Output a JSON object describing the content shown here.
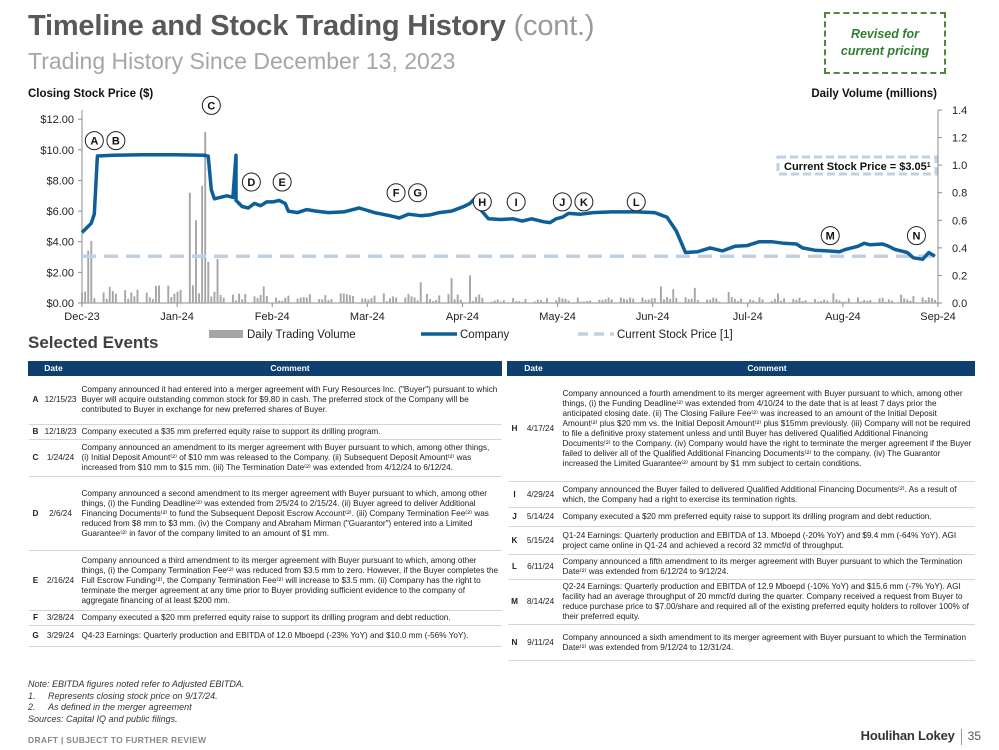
{
  "header": {
    "title": "Timeline and Stock Trading History",
    "title_suffix": "(cont.)",
    "subtitle": "Trading History Since December 13, 2023",
    "revised_note": "Revised for\ncurrent pricing"
  },
  "chart_data": {
    "type": "line+bar",
    "left_axis_label": "Closing Stock Price ($)",
    "right_axis_label": "Daily Volume (millions)",
    "y_left_ticks": [
      "$0.00",
      "$2.00",
      "$4.00",
      "$6.00",
      "$8.00",
      "$10.00",
      "$12.00"
    ],
    "y_left_range": [
      0,
      12.6
    ],
    "y_right_ticks": [
      "0.0",
      "0.2",
      "0.4",
      "0.6",
      "0.8",
      "1.0",
      "1.2",
      "1.4"
    ],
    "y_right_range": [
      0,
      1.4
    ],
    "x_tick_labels": [
      "Dec-23",
      "Jan-24",
      "Feb-24",
      "Mar-24",
      "Apr-24",
      "May-24",
      "Jun-24",
      "Jul-24",
      "Aug-24",
      "Sep-24"
    ],
    "x_day_range": [
      0,
      278
    ],
    "current_price": 3.05,
    "current_price_label": "Current Stock Price = $3.05",
    "current_price_footnote": "1",
    "price_series": [
      [
        0,
        4.6
      ],
      [
        3,
        5.2
      ],
      [
        4,
        5.8
      ],
      [
        5,
        9.6
      ],
      [
        10,
        9.65
      ],
      [
        20,
        9.68
      ],
      [
        30,
        9.68
      ],
      [
        40,
        9.65
      ],
      [
        50,
        9.65
      ],
      [
        40,
        9.62
      ],
      [
        41,
        9.6
      ],
      [
        42,
        7.4
      ],
      [
        43,
        6.8
      ],
      [
        45,
        6.9
      ],
      [
        47,
        7.0
      ],
      [
        49,
        6.9
      ],
      [
        50,
        6.7
      ],
      [
        52,
        6.3
      ],
      [
        54,
        6.2
      ],
      [
        56,
        6.5
      ],
      [
        58,
        6.35
      ],
      [
        60,
        6.6
      ],
      [
        62,
        6.6
      ],
      [
        64,
        6.7
      ],
      [
        66,
        6.5
      ],
      [
        67,
        6.0
      ],
      [
        70,
        5.9
      ],
      [
        73,
        6.1
      ],
      [
        76,
        6.0
      ],
      [
        80,
        5.9
      ],
      [
        85,
        5.95
      ],
      [
        90,
        6.2
      ],
      [
        95,
        5.9
      ],
      [
        100,
        5.7
      ],
      [
        103,
        5.55
      ],
      [
        106,
        5.8
      ],
      [
        110,
        5.7
      ],
      [
        113,
        5.75
      ],
      [
        116,
        5.9
      ],
      [
        120,
        6.0
      ],
      [
        122,
        6.15
      ],
      [
        124,
        6.3
      ],
      [
        126,
        6.5
      ],
      [
        128,
        6.9
      ],
      [
        129,
        6.2
      ],
      [
        132,
        5.5
      ],
      [
        136,
        5.45
      ],
      [
        140,
        5.5
      ],
      [
        143,
        5.35
      ],
      [
        146,
        5.5
      ],
      [
        150,
        5.3
      ],
      [
        152,
        5.25
      ],
      [
        154,
        5.5
      ],
      [
        156,
        5.6
      ],
      [
        158,
        5.85
      ],
      [
        162,
        5.8
      ],
      [
        166,
        5.9
      ],
      [
        172,
        5.95
      ],
      [
        180,
        5.95
      ],
      [
        186,
        5.9
      ],
      [
        190,
        5.6
      ],
      [
        193,
        4.7
      ],
      [
        196,
        3.3
      ],
      [
        200,
        3.35
      ],
      [
        204,
        3.6
      ],
      [
        208,
        3.4
      ],
      [
        212,
        3.7
      ],
      [
        216,
        3.75
      ],
      [
        220,
        4.0
      ],
      [
        224,
        4.0
      ],
      [
        228,
        3.9
      ],
      [
        232,
        3.85
      ],
      [
        234,
        3.6
      ],
      [
        238,
        3.45
      ],
      [
        242,
        3.4
      ],
      [
        246,
        3.35
      ],
      [
        248,
        3.5
      ],
      [
        252,
        3.7
      ],
      [
        254,
        3.9
      ],
      [
        256,
        3.8
      ],
      [
        260,
        3.85
      ],
      [
        262,
        3.7
      ],
      [
        264,
        3.5
      ],
      [
        266,
        3.4
      ],
      [
        268,
        3.3
      ],
      [
        270,
        2.95
      ],
      [
        273,
        2.85
      ],
      [
        275,
        3.3
      ],
      [
        277,
        3.05
      ]
    ],
    "volume_highlights": [
      [
        2,
        0.38
      ],
      [
        3,
        0.45
      ],
      [
        39,
        0.85
      ],
      [
        40,
        1.24
      ],
      [
        44,
        0.32
      ],
      [
        41,
        0.3
      ],
      [
        35,
        0.8
      ],
      [
        37,
        0.6
      ],
      [
        59,
        0.12
      ],
      [
        110,
        0.15
      ],
      [
        120,
        0.18
      ],
      [
        126,
        0.2
      ],
      [
        188,
        0.12
      ],
      [
        192,
        0.1
      ],
      [
        199,
        0.11
      ],
      [
        210,
        0.08
      ],
      [
        226,
        0.07
      ],
      [
        244,
        0.07
      ],
      [
        266,
        0.06
      ],
      [
        270,
        0.05
      ]
    ],
    "event_markers": [
      {
        "letter": "A",
        "day": 4,
        "price": 10.6
      },
      {
        "letter": "B",
        "day": 11,
        "price": 10.6
      },
      {
        "letter": "C",
        "day": 42,
        "price": 12.9
      },
      {
        "letter": "D",
        "day": 55,
        "price": 7.9
      },
      {
        "letter": "E",
        "day": 65,
        "price": 7.9
      },
      {
        "letter": "F",
        "day": 102,
        "price": 7.2
      },
      {
        "letter": "G",
        "day": 109,
        "price": 7.2
      },
      {
        "letter": "H",
        "day": 130,
        "price": 6.6
      },
      {
        "letter": "I",
        "day": 141,
        "price": 6.6
      },
      {
        "letter": "J",
        "day": 156,
        "price": 6.6
      },
      {
        "letter": "K",
        "day": 163,
        "price": 6.6
      },
      {
        "letter": "L",
        "day": 180,
        "price": 6.6
      },
      {
        "letter": "M",
        "day": 243,
        "price": 4.4
      },
      {
        "letter": "N",
        "day": 271,
        "price": 4.4
      }
    ],
    "legend": {
      "volume": "Daily Trading Volume",
      "company": "Company",
      "current": "Current Stock Price [1]"
    },
    "colors": {
      "company": "#0e5f99",
      "volume": "#a6a6a6",
      "current": "#bfd1e3"
    }
  },
  "events": {
    "section_title": "Selected Events",
    "col_date": "Date",
    "col_comment": "Comment",
    "left": [
      {
        "letter": "A",
        "date": "12/15/23",
        "comment": "Company announced it had entered into a merger agreement with Fury Resources Inc. (\"Buyer\") pursuant to which Buyer will acquire outstanding common stock for $9.80 in cash. The preferred stock of the Company will be contributed to Buyer in exchange for new preferred shares of Buyer."
      },
      {
        "letter": "B",
        "date": "12/18/23",
        "comment": "Company executed a $35 mm preferred equity raise to support its drilling program."
      },
      {
        "letter": "C",
        "date": "1/24/24",
        "comment": "Company announced an amendment to its merger agreement with Buyer pursuant to which, among other things, (i) Initial Deposit Amount⁽²⁾ of $10 mm was released to the Company. (ii) Subsequent Deposit Amount⁽²⁾ was increased from $10 mm to $15 mm. (iii) The Termination Date⁽²⁾ was extended from 4/12/24 to 6/12/24."
      },
      {
        "letter": "D",
        "date": "2/6/24",
        "comment": "Company announced a second amendment to its merger agreement with Buyer pursuant to which, among other things, (i) the Funding Deadline⁽²⁾ was extended from 2/5/24 to 2/15/24. (ii) Buyer agreed to deliver Additional Financing Documents⁽²⁾ to fund the Subsequent Deposit Escrow Account⁽²⁾. (iii) Company Termination Fee⁽²⁾ was reduced from $8 mm to $3 mm. (iv) the Company and Abraham Mirman (\"Guarantor\") entered into a Limited Guarantee⁽²⁾ in favor of the company limited to an amount of $1 mm."
      },
      {
        "letter": "E",
        "date": "2/16/24",
        "comment": "Company announced a third amendment to its merger agreement with Buyer pursuant to which, among other things, (i) the Company Termination Fee⁽²⁾ was reduced from $3.5 mm to zero. However, if the Buyer completes the Full Escrow Funding⁽²⁾, the Company Termination Fee⁽²⁾ will increase to $3.5 mm. (ii) Company has the right to terminate the merger agreement at any time prior to Buyer providing sufficient evidence to the company of aggregate financing of at least $200 mm."
      },
      {
        "letter": "F",
        "date": "3/28/24",
        "comment": "Company executed a $20 mm preferred equity raise to support its drilling program and debt reduction."
      },
      {
        "letter": "G",
        "date": "3/29/24",
        "comment": "Q4-23 Earnings: Quarterly production and EBITDA of 12.0 Mboepd (-23% YoY) and $10.0 mm (-56% YoY)."
      }
    ],
    "right": [
      {
        "letter": "H",
        "date": "4/17/24",
        "comment": "Company announced a fourth amendment to its merger agreement with Buyer pursuant to which, among other things, (i) the Funding Deadline⁽²⁾ was extended from 4/10/24 to the date that is at least 7 days prior the anticipated closing date. (ii) The Closing Failure Fee⁽²⁾ was increased to an amount of the Initial Deposit Amount⁽²⁾ plus $20 mm vs. the Initial Deposit Amount⁽²⁾ plus $15mm previously. (iii) Company will not be required to file a definitive proxy statement unless and until Buyer has delivered Qualified Additional Financing Documents⁽²⁾ to the Company. (iv) Company would have the right to terminate the merger agreement if the Buyer failed to deliver all of the Qualified Additional Financing Documents⁽²⁾ to the company. (iv) The Guarantor increased the Limited Guarantee⁽²⁾ amount by $1 mm subject to certain conditions."
      },
      {
        "letter": "I",
        "date": "4/29/24",
        "comment": "Company announced the Buyer failed to delivered Qualified Additional Financing Documents⁽²⁾. As a result of which, the Company had a right to exercise its termination rights."
      },
      {
        "letter": "J",
        "date": "5/14/24",
        "comment": "Company executed a $20 mm preferred equity raise to support its drilling program and debt reduction."
      },
      {
        "letter": "K",
        "date": "5/15/24",
        "comment": "Q1-24 Earnings: Quarterly production and EBITDA of 13. Mboepd (-20% YoY) and $9.4 mm (-64% YoY). AGI project came online in Q1-24 and achieved a record 32 mmcf/d of throughput."
      },
      {
        "letter": "L",
        "date": "6/11/24",
        "comment": "Company announced a fifth amendment to its merger agreement with Buyer pursuant to which the Termination Date⁽²⁾ was extended from 6/12/24 to 9/12/24."
      },
      {
        "letter": "M",
        "date": "8/14/24",
        "comment": "Q2-24 Earnings: Quarterly production and EBITDA of 12.9 Mboepd (-10% YoY) and $15.6 mm (-7% YoY). AGI facility had an average throughput of 20 mmcf/d during the quarter. Company received a request from Buyer to reduce purchase price to $7.00/share and required all of the existing preferred equity holders to rollover 100% of their preferred equity."
      },
      {
        "letter": "N",
        "date": "9/11/24",
        "comment": "Company announced a sixth amendment to its merger agreement with Buyer pursuant to which the Termination Date⁽²⁾ was extended from 9/12/24 to 12/31/24."
      }
    ]
  },
  "notes": {
    "note": "Note: EBITDA figures noted refer to Adjusted EBITDA.",
    "items": [
      {
        "num": "1.",
        "text": "Represents closing stock price on 9/17/24."
      },
      {
        "num": "2.",
        "text": "As defined in the merger agreement"
      }
    ],
    "sources": "Sources: Capital IQ and public filings."
  },
  "footer": {
    "draft": "DRAFT | SUBJECT TO FURTHER REVIEW",
    "brand": "Houlihan Lokey",
    "page": "35"
  }
}
